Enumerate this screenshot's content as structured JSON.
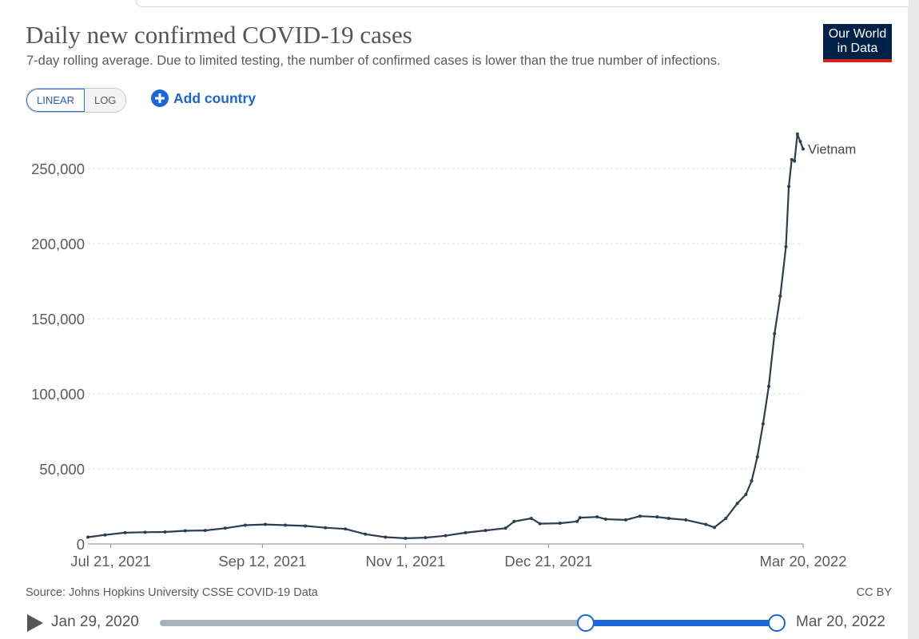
{
  "header": {
    "title": "Daily new confirmed COVID-19 cases",
    "subtitle": "7-day rolling average. Due to limited testing, the number of confirmed cases is lower than the true number of infections.",
    "logo_line1": "Our World",
    "logo_line2": "in Data"
  },
  "controls": {
    "scale_options": [
      "LINEAR",
      "LOG"
    ],
    "active_scale": "LINEAR",
    "add_country_label": "Add country"
  },
  "footer": {
    "source": "Source: Johns Hopkins University CSSE COVID-19 Data",
    "license": "CC BY"
  },
  "timeline": {
    "start_label": "Jan 29, 2020",
    "end_label": "Mar 20, 2022",
    "selected_start_fraction": 0.69,
    "selected_end_fraction": 1.0
  },
  "colors": {
    "line": "#2c3e50",
    "accent": "#1a66d6",
    "logo_bg": "#002147",
    "logo_bar": "#ce261e"
  },
  "chart_data": {
    "type": "line",
    "x_start": "2021-07-13",
    "x_end": "2022-03-20",
    "y_range": [
      0,
      270000
    ],
    "y_ticks": [
      0,
      50000,
      100000,
      150000,
      200000,
      250000
    ],
    "y_tick_labels": [
      "0",
      "50,000",
      "100,000",
      "150,000",
      "200,000",
      "250,000"
    ],
    "x_ticks": [
      {
        "date": "2021-07-21",
        "label": "Jul 21, 2021"
      },
      {
        "date": "2021-09-12",
        "label": "Sep 12, 2021"
      },
      {
        "date": "2021-11-01",
        "label": "Nov 1, 2021"
      },
      {
        "date": "2021-12-21",
        "label": "Dec 21, 2021"
      },
      {
        "date": "2022-03-20",
        "label": "Mar 20, 2022"
      }
    ],
    "grid": true,
    "series": [
      {
        "name": "Vietnam",
        "points": [
          [
            "2021-07-13",
            4500
          ],
          [
            "2021-07-19",
            6000
          ],
          [
            "2021-07-26",
            7500
          ],
          [
            "2021-08-02",
            7800
          ],
          [
            "2021-08-09",
            8000
          ],
          [
            "2021-08-16",
            8800
          ],
          [
            "2021-08-23",
            9000
          ],
          [
            "2021-08-30",
            10500
          ],
          [
            "2021-09-06",
            12500
          ],
          [
            "2021-09-13",
            13000
          ],
          [
            "2021-09-20",
            12500
          ],
          [
            "2021-09-27",
            12000
          ],
          [
            "2021-10-04",
            10800
          ],
          [
            "2021-10-11",
            10000
          ],
          [
            "2021-10-18",
            6500
          ],
          [
            "2021-10-25",
            4500
          ],
          [
            "2021-11-01",
            3800
          ],
          [
            "2021-11-08",
            4200
          ],
          [
            "2021-11-15",
            5500
          ],
          [
            "2021-11-22",
            7500
          ],
          [
            "2021-11-29",
            9000
          ],
          [
            "2021-12-06",
            10500
          ],
          [
            "2021-12-09",
            15000
          ],
          [
            "2021-12-15",
            17000
          ],
          [
            "2021-12-18",
            13500
          ],
          [
            "2021-12-25",
            13800
          ],
          [
            "2021-12-31",
            15000
          ],
          [
            "2022-01-01",
            17500
          ],
          [
            "2022-01-07",
            18000
          ],
          [
            "2022-01-10",
            16500
          ],
          [
            "2022-01-17",
            16000
          ],
          [
            "2022-01-22",
            18500
          ],
          [
            "2022-01-28",
            18000
          ],
          [
            "2022-02-01",
            17000
          ],
          [
            "2022-02-07",
            16000
          ],
          [
            "2022-02-14",
            13000
          ],
          [
            "2022-02-17",
            11000
          ],
          [
            "2022-02-21",
            17000
          ],
          [
            "2022-02-25",
            27000
          ],
          [
            "2022-02-28",
            33000
          ],
          [
            "2022-03-02",
            42000
          ],
          [
            "2022-03-04",
            58000
          ],
          [
            "2022-03-06",
            80000
          ],
          [
            "2022-03-08",
            105000
          ],
          [
            "2022-03-10",
            140000
          ],
          [
            "2022-03-12",
            165000
          ],
          [
            "2022-03-14",
            198000
          ],
          [
            "2022-03-15",
            238000
          ],
          [
            "2022-03-16",
            256000
          ],
          [
            "2022-03-17",
            255000
          ],
          [
            "2022-03-18",
            273000
          ],
          [
            "2022-03-19",
            268000
          ],
          [
            "2022-03-20",
            263000
          ]
        ]
      }
    ]
  }
}
